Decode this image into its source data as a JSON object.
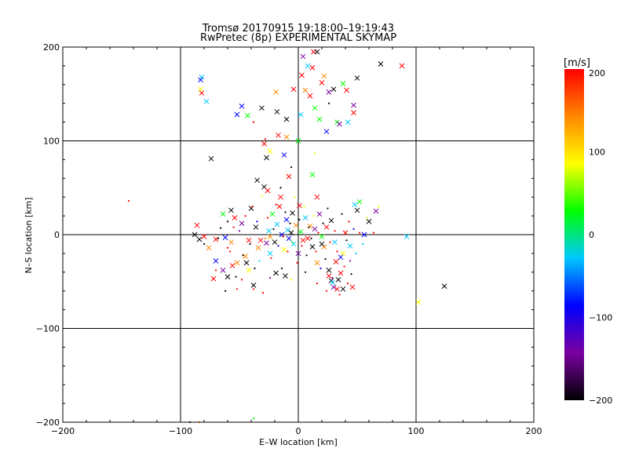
{
  "chart_data": {
    "type": "scatter",
    "title": "Tromsø 20170915 19:18:00–19:19:43",
    "subtitle": "RwPretec (8p) EXPERIMENTAL SKYMAP",
    "xlabel": "E–W location [km]",
    "ylabel": "N–S location [km]",
    "xlim": [
      -200,
      200
    ],
    "ylim": [
      -200,
      200
    ],
    "xticks": [
      -200,
      -100,
      0,
      100,
      200
    ],
    "yticks": [
      -200,
      -100,
      0,
      100,
      200
    ],
    "xtick_labels": [
      "−200",
      "−100",
      "0",
      "100",
      "200"
    ],
    "ytick_labels": [
      "−200",
      "−100",
      "0",
      "100",
      "200"
    ],
    "grid": true,
    "colorbar": {
      "label": "[m/s]",
      "min": -200,
      "max": 200,
      "ticks": [
        200,
        100,
        0,
        -100,
        -200
      ],
      "tick_labels": [
        "200",
        "100",
        "0",
        "−100",
        "−200"
      ],
      "colors": [
        "#000000",
        "#7a00a0",
        "#0000ff",
        "#00c8ff",
        "#00ff00",
        "#ffff00",
        "#ff8800",
        "#ff0000"
      ]
    },
    "series": [
      {
        "marker": "x",
        "points": [
          [
            -82,
            168
          ],
          [
            -83,
            165
          ],
          [
            -83,
            155
          ],
          [
            -82,
            151
          ],
          [
            -78,
            142
          ],
          [
            -52,
            128
          ],
          [
            -48,
            137
          ],
          [
            -43,
            127
          ],
          [
            -31,
            135
          ],
          [
            -29,
            97
          ],
          [
            -27,
            82
          ],
          [
            -24,
            89
          ],
          [
            -19,
            152
          ],
          [
            -18,
            131
          ],
          [
            -12,
            85
          ],
          [
            -10,
            123
          ],
          [
            -4,
            155
          ],
          [
            0,
            100
          ],
          [
            2,
            128
          ],
          [
            3,
            170
          ],
          [
            4,
            190
          ],
          [
            6,
            154
          ],
          [
            8,
            180
          ],
          [
            10,
            148
          ],
          [
            12,
            178
          ],
          [
            13,
            195
          ],
          [
            14,
            135
          ],
          [
            16,
            195
          ],
          [
            18,
            123
          ],
          [
            20,
            162
          ],
          [
            22,
            169
          ],
          [
            24,
            110
          ],
          [
            26,
            152
          ],
          [
            30,
            155
          ],
          [
            33,
            120
          ],
          [
            35,
            118
          ],
          [
            38,
            161
          ],
          [
            41,
            154
          ],
          [
            42,
            120
          ],
          [
            47,
            138
          ],
          [
            47,
            130
          ],
          [
            50,
            167
          ],
          [
            70,
            182
          ],
          [
            88,
            180
          ],
          [
            -74,
            81
          ],
          [
            -10,
            104
          ],
          [
            -17,
            106
          ],
          [
            -86,
            10
          ],
          [
            -88,
            0
          ],
          [
            -84,
            -5
          ],
          [
            -80,
            -2
          ],
          [
            -76,
            -14
          ],
          [
            -70,
            -5
          ],
          [
            -64,
            22
          ],
          [
            -62,
            -3
          ],
          [
            -57,
            26
          ],
          [
            -54,
            18
          ],
          [
            -52,
            -30
          ],
          [
            -48,
            12
          ],
          [
            -45,
            -23
          ],
          [
            -42,
            -38
          ],
          [
            -40,
            28
          ],
          [
            -36,
            8
          ],
          [
            -34,
            -14
          ],
          [
            -32,
            -6
          ],
          [
            -29,
            51
          ],
          [
            -26,
            47
          ],
          [
            -25,
            4
          ],
          [
            -24,
            -20
          ],
          [
            -22,
            22
          ],
          [
            -20,
            -8
          ],
          [
            -18,
            11
          ],
          [
            -16,
            30
          ],
          [
            -14,
            0
          ],
          [
            -12,
            -16
          ],
          [
            -10,
            16
          ],
          [
            -9,
            5
          ],
          [
            -8,
            -4
          ],
          [
            -6,
            2
          ],
          [
            -5,
            23
          ],
          [
            -4,
            -10
          ],
          [
            -2,
            10
          ],
          [
            0,
            -20
          ],
          [
            1,
            31
          ],
          [
            2,
            3
          ],
          [
            4,
            -6
          ],
          [
            6,
            18
          ],
          [
            8,
            -4
          ],
          [
            10,
            9
          ],
          [
            12,
            -13
          ],
          [
            14,
            6
          ],
          [
            16,
            -30
          ],
          [
            18,
            22
          ],
          [
            20,
            -2
          ],
          [
            22,
            -13
          ],
          [
            24,
            8
          ],
          [
            26,
            -38
          ],
          [
            28,
            -49
          ],
          [
            30,
            -56
          ],
          [
            32,
            -29
          ],
          [
            34,
            -48
          ],
          [
            36,
            -24
          ],
          [
            38,
            -58
          ],
          [
            40,
            2
          ],
          [
            44,
            -12
          ],
          [
            46,
            -56
          ],
          [
            48,
            32
          ],
          [
            50,
            26
          ],
          [
            52,
            35
          ],
          [
            56,
            0
          ],
          [
            60,
            14
          ],
          [
            66,
            25
          ],
          [
            92,
            -2
          ],
          [
            124,
            -55
          ],
          [
            102,
            -72
          ],
          [
            -11,
            -44
          ],
          [
            -19,
            -41
          ],
          [
            -24,
            -2
          ],
          [
            -27,
            -9
          ],
          [
            -42,
            -6
          ],
          [
            -57,
            -8
          ],
          [
            -8,
            62
          ],
          [
            -15,
            40
          ],
          [
            -35,
            58
          ],
          [
            -64,
            -38
          ],
          [
            -72,
            -47
          ],
          [
            -60,
            -45
          ],
          [
            -70,
            -28
          ],
          [
            -56,
            -33
          ],
          [
            -44,
            -30
          ],
          [
            -38,
            -54
          ],
          [
            12,
            64
          ],
          [
            16,
            40
          ],
          [
            20,
            -10
          ],
          [
            28,
            15
          ],
          [
            31,
            -8
          ],
          [
            38,
            -20
          ],
          [
            26,
            -44
          ],
          [
            33,
            -58
          ],
          [
            36,
            -41
          ],
          [
            29,
            -51
          ]
        ]
      },
      {
        "marker": "dot",
        "points": [
          [
            -144,
            36
          ],
          [
            -70,
            -38
          ],
          [
            -68,
            -4
          ],
          [
            -66,
            7
          ],
          [
            -60,
            14
          ],
          [
            -58,
            -18
          ],
          [
            -55,
            8
          ],
          [
            -53,
            -45
          ],
          [
            -50,
            4
          ],
          [
            -47,
            -22
          ],
          [
            -45,
            20
          ],
          [
            -41,
            -10
          ],
          [
            -39,
            30
          ],
          [
            -37,
            -36
          ],
          [
            -35,
            14
          ],
          [
            -33,
            -28
          ],
          [
            -31,
            41
          ],
          [
            -28,
            -4
          ],
          [
            -26,
            18
          ],
          [
            -23,
            -25
          ],
          [
            -21,
            6
          ],
          [
            -19,
            32
          ],
          [
            -17,
            -12
          ],
          [
            -15,
            50
          ],
          [
            -13,
            -2
          ],
          [
            -11,
            24
          ],
          [
            -9,
            -18
          ],
          [
            -7,
            12
          ],
          [
            -5,
            -8
          ],
          [
            -3,
            40
          ],
          [
            -1,
            -30
          ],
          [
            1,
            16
          ],
          [
            3,
            -12
          ],
          [
            5,
            30
          ],
          [
            7,
            -22
          ],
          [
            9,
            8
          ],
          [
            11,
            -4
          ],
          [
            13,
            20
          ],
          [
            15,
            -18
          ],
          [
            17,
            2
          ],
          [
            19,
            -36
          ],
          [
            21,
            12
          ],
          [
            23,
            -26
          ],
          [
            25,
            28
          ],
          [
            27,
            -8
          ],
          [
            29,
            -46
          ],
          [
            31,
            4
          ],
          [
            33,
            -18
          ],
          [
            35,
            -64
          ],
          [
            37,
            22
          ],
          [
            39,
            -34
          ],
          [
            41,
            -6
          ],
          [
            43,
            14
          ],
          [
            45,
            -42
          ],
          [
            47,
            6
          ],
          [
            49,
            -20
          ],
          [
            52,
            2
          ],
          [
            55,
            -10
          ],
          [
            58,
            18
          ],
          [
            64,
            2
          ],
          [
            68,
            30
          ],
          [
            -48,
            -48
          ],
          [
            -24,
            -46
          ],
          [
            -14,
            -36
          ],
          [
            -6,
            -48
          ],
          [
            6,
            -40
          ],
          [
            16,
            -52
          ],
          [
            24,
            -60
          ],
          [
            42,
            -52
          ],
          [
            14,
            87
          ],
          [
            -28,
            102
          ],
          [
            -38,
            120
          ],
          [
            -6,
            72
          ],
          [
            26,
            140
          ],
          [
            44,
            -28
          ],
          [
            -60,
            -14
          ],
          [
            -80,
            -10
          ],
          [
            -62,
            -60
          ],
          [
            -38,
            -58
          ],
          [
            -30,
            -62
          ],
          [
            -52,
            -58
          ],
          [
            -84,
            -200
          ],
          [
            -92,
            -200
          ],
          [
            -38,
            -196
          ]
        ]
      }
    ]
  }
}
